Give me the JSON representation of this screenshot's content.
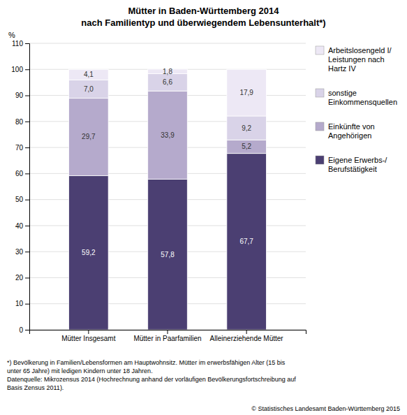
{
  "chart_data": {
    "type": "bar",
    "stacked": true,
    "data_labels": true,
    "grid": true,
    "title": "Mütter in Baden-Württemberg 2014",
    "subtitle": "nach Familientyp und überwiegendem Lebensunterhalt*)",
    "ylabel": "%",
    "categories": [
      "Mütter Insgesamt",
      "Mütter in Paarfamilien",
      "Alleinerziehende Mütter"
    ],
    "series": [
      {
        "name": "Eigene Erwerbs-/\nBerufstätigkeit",
        "color": "#4B3F72",
        "values": [
          59.2,
          57.8,
          67.7
        ],
        "value_labels": [
          "59,2",
          "57,8",
          "67,7"
        ]
      },
      {
        "name": "Einkünfte von\nAngehörigen",
        "color": "#B5AACC",
        "values": [
          29.7,
          33.9,
          5.2
        ],
        "value_labels": [
          "29,7",
          "33,9",
          "5,2"
        ]
      },
      {
        "name": "sonstige\nEinkommensquellen",
        "color": "#D9D3E8",
        "values": [
          7.0,
          6.6,
          9.2
        ],
        "value_labels": [
          "7,0",
          "6,6",
          "9,2"
        ]
      },
      {
        "name": "Arbeitslosengeld I/\nLeistungen nach\nHartz IV",
        "color": "#EDE8F5",
        "values": [
          4.1,
          1.8,
          17.9
        ],
        "value_labels": [
          "4,1",
          "1,8",
          "17,9"
        ]
      }
    ],
    "ylim": [
      0,
      110
    ],
    "yticks": [
      0,
      10,
      20,
      30,
      40,
      50,
      60,
      70,
      80,
      90,
      100,
      110
    ],
    "annotations": [
      "*) Bevölkerung in Familien/Lebensformen am Hauptwohnsitz. Mütter im erwerbsfähigen Alter (15 bis",
      "unter 65 Jahre) mit ledigen Kindern unter 18 Jahren.",
      "Datenquelle: Mikrozensus 2014 (Hochrechnung anhand der vorläufigen Bevölkerungsfortschreibung auf",
      "Basis Zensus 2011)."
    ],
    "copyright": "© Statistisches Landesamt Baden-Württemberg 2015"
  }
}
